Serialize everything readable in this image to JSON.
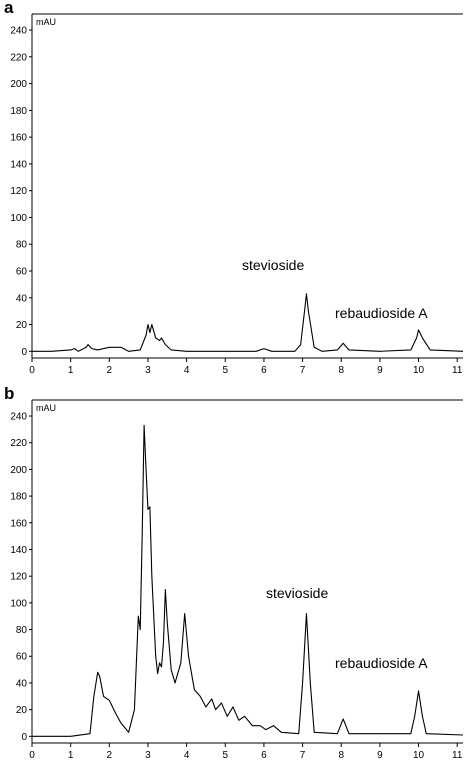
{
  "chart_data": [
    {
      "type": "line",
      "panel": "a",
      "y_unit": "mAU",
      "annotations": [
        "stevioside",
        "rebaudioside A"
      ],
      "x": [
        0,
        0.5,
        1.0,
        1.1,
        1.2,
        1.4,
        1.45,
        1.55,
        1.7,
        2.0,
        2.3,
        2.5,
        2.8,
        2.95,
        3.0,
        3.05,
        3.1,
        3.2,
        3.3,
        3.35,
        3.45,
        3.6,
        4.0,
        5.0,
        5.8,
        6.0,
        6.2,
        6.8,
        6.95,
        7.05,
        7.1,
        7.15,
        7.3,
        7.5,
        7.9,
        8.05,
        8.2,
        9.0,
        9.8,
        9.95,
        10.0,
        10.1,
        10.3,
        11.15
      ],
      "series": [
        {
          "color": "#000000",
          "values": [
            0,
            0,
            1,
            2,
            0,
            3,
            5,
            2,
            1,
            3,
            3,
            0,
            1,
            12,
            20,
            14,
            20,
            10,
            8,
            10,
            5,
            1,
            0,
            0,
            0,
            2,
            0,
            0,
            5,
            30,
            43,
            30,
            3,
            0,
            1,
            6,
            1,
            0,
            1,
            10,
            16,
            10,
            1,
            0
          ]
        }
      ],
      "xlim": [
        0,
        11.15
      ],
      "ylim": [
        -5,
        252
      ],
      "xticks": [
        0,
        1,
        2,
        3,
        4,
        5,
        6,
        7,
        8,
        9,
        10,
        11
      ],
      "yticks": [
        0,
        20,
        40,
        60,
        80,
        100,
        120,
        140,
        160,
        180,
        200,
        220,
        240
      ]
    },
    {
      "type": "line",
      "panel": "b",
      "y_unit": "mAU",
      "annotations": [
        "stevioside",
        "rebaudioside A"
      ],
      "x": [
        0,
        1.0,
        1.5,
        1.6,
        1.7,
        1.75,
        1.85,
        2.0,
        2.15,
        2.3,
        2.5,
        2.65,
        2.75,
        2.8,
        2.85,
        2.9,
        2.95,
        3.0,
        3.05,
        3.1,
        3.2,
        3.25,
        3.3,
        3.35,
        3.4,
        3.45,
        3.5,
        3.6,
        3.7,
        3.85,
        3.95,
        4.05,
        4.2,
        4.35,
        4.5,
        4.65,
        4.75,
        4.9,
        5.05,
        5.2,
        5.35,
        5.5,
        5.7,
        5.9,
        6.05,
        6.25,
        6.45,
        6.9,
        7.0,
        7.1,
        7.2,
        7.3,
        7.9,
        8.05,
        8.2,
        9.8,
        9.9,
        10.0,
        10.1,
        10.2,
        11.15
      ],
      "series": [
        {
          "color": "#000000",
          "values": [
            0,
            0,
            2,
            30,
            48,
            45,
            30,
            27,
            18,
            10,
            3,
            20,
            90,
            80,
            150,
            233,
            200,
            170,
            172,
            120,
            60,
            47,
            55,
            52,
            70,
            110,
            85,
            50,
            40,
            55,
            92,
            60,
            35,
            30,
            22,
            28,
            20,
            25,
            15,
            22,
            12,
            15,
            8,
            8,
            5,
            8,
            3,
            2,
            40,
            92,
            40,
            3,
            2,
            13,
            2,
            2,
            15,
            34,
            15,
            2,
            1
          ]
        }
      ],
      "xlim": [
        0,
        11.15
      ],
      "ylim": [
        -5,
        252
      ],
      "xticks": [
        0,
        1,
        2,
        3,
        4,
        5,
        6,
        7,
        8,
        9,
        10,
        11
      ],
      "yticks": [
        0,
        20,
        40,
        60,
        80,
        100,
        120,
        140,
        160,
        180,
        200,
        220,
        240
      ]
    }
  ]
}
